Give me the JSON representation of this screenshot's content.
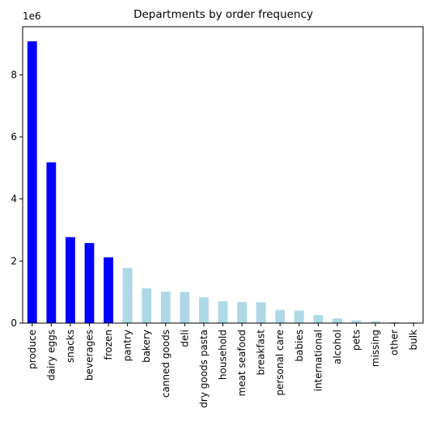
{
  "chart_data": {
    "type": "bar",
    "title": "Departments by order frequency",
    "xlabel": "",
    "ylabel": "",
    "y_offset_label": "1e6",
    "ylim": [
      0,
      9.55
    ],
    "yticks": [
      0,
      2,
      4,
      6,
      8
    ],
    "grid": false,
    "categories": [
      "produce",
      "dairy eggs",
      "snacks",
      "beverages",
      "frozen",
      "pantry",
      "bakery",
      "canned goods",
      "deli",
      "dry goods pasta",
      "household",
      "meat seafood",
      "breakfast",
      "personal care",
      "babies",
      "international",
      "alcohol",
      "pets",
      "missing",
      "other",
      "bulk"
    ],
    "values": [
      9.08,
      5.18,
      2.77,
      2.58,
      2.12,
      1.78,
      1.12,
      1.01,
      1.0,
      0.83,
      0.7,
      0.68,
      0.67,
      0.42,
      0.4,
      0.26,
      0.15,
      0.09,
      0.06,
      0.03,
      0.03
    ],
    "highlight_count": 5,
    "colors": {
      "highlight": "#0000ff",
      "default": "#add8e6"
    }
  }
}
